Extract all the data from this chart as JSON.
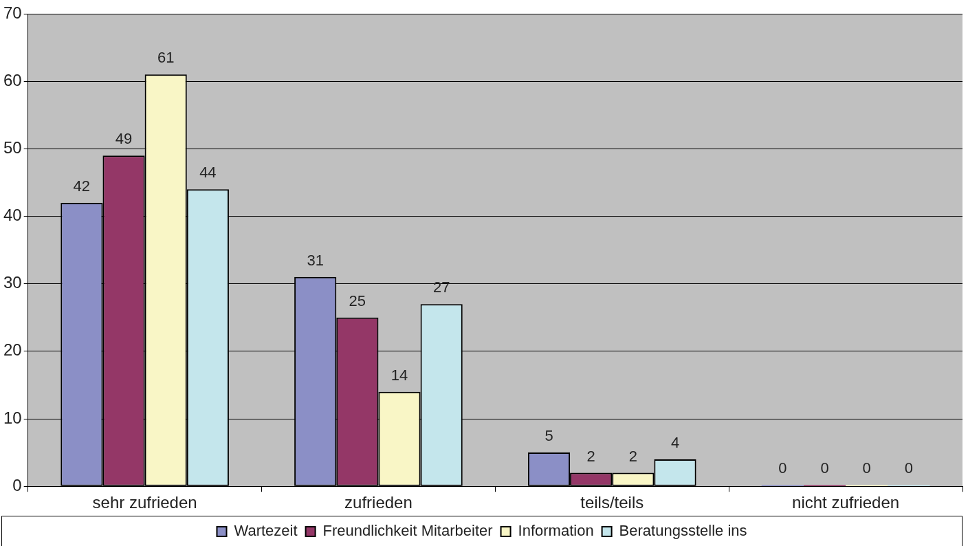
{
  "chart_data": {
    "type": "bar",
    "categories": [
      "sehr zufrieden",
      "zufrieden",
      "teils/teils",
      "nicht zufrieden"
    ],
    "series": [
      {
        "name": "Wartezeit",
        "color": "#8b8fc6",
        "values": [
          42,
          31,
          5,
          0
        ]
      },
      {
        "name": "Freundlichkeit Mitarbeiter",
        "color": "#943767",
        "values": [
          49,
          25,
          2,
          0
        ]
      },
      {
        "name": "Information",
        "color": "#f9f6c6",
        "values": [
          61,
          14,
          2,
          0
        ]
      },
      {
        "name": "Beratungsstelle ins",
        "color": "#c4e6ec",
        "values": [
          44,
          27,
          4,
          0
        ]
      }
    ],
    "ylim": [
      0,
      70
    ],
    "yticks": [
      0,
      10,
      20,
      30,
      40,
      50,
      60,
      70
    ],
    "grid": "y",
    "legend": "bottom",
    "data_labels": true
  }
}
